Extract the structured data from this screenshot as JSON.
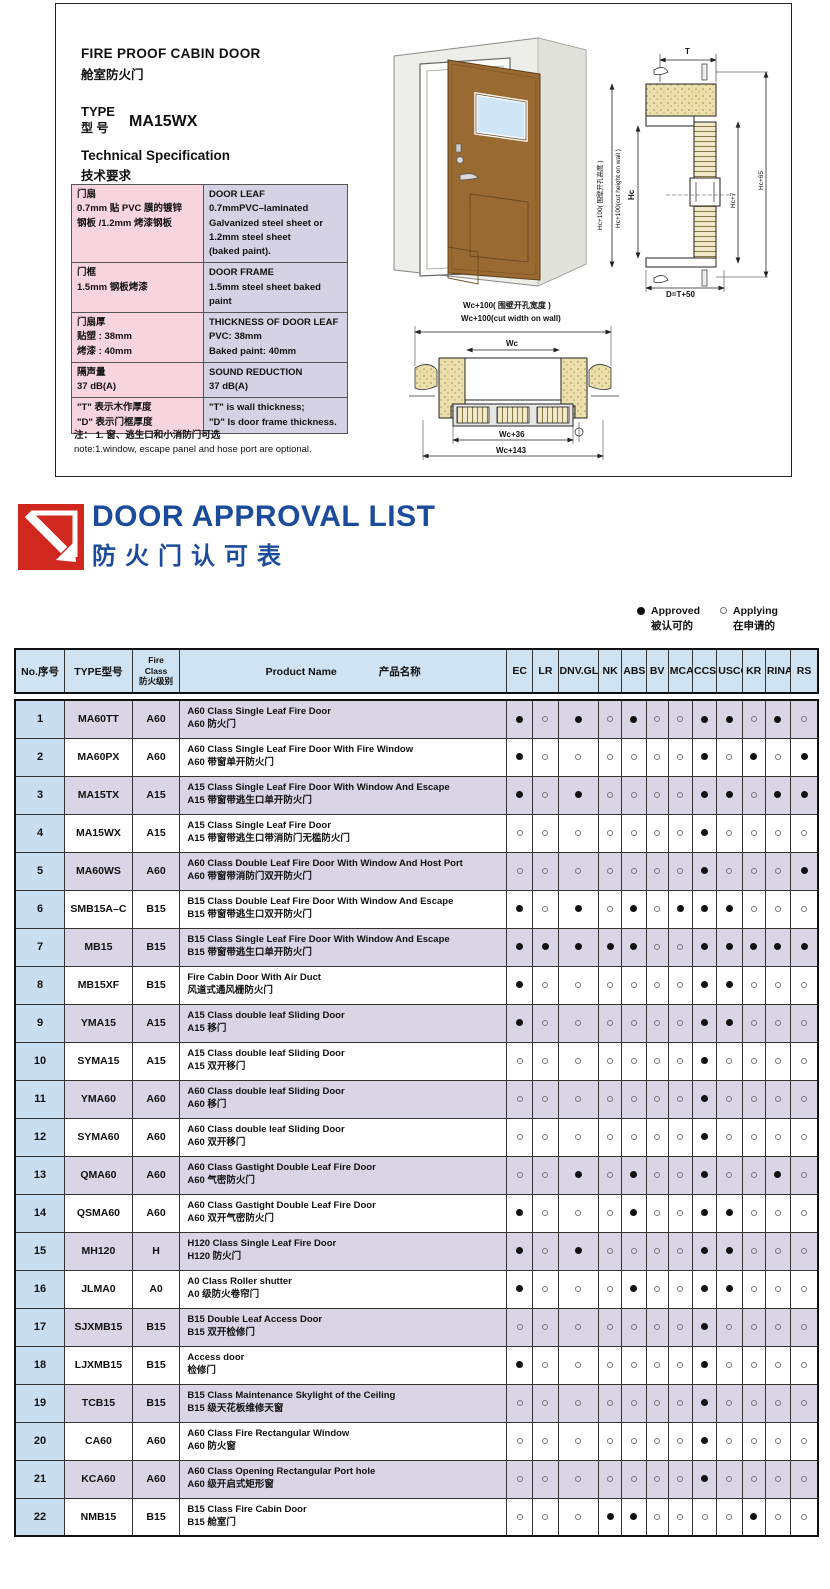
{
  "spec_sheet": {
    "title_en": "FIRE PROOF CABIN DOOR",
    "title_zh": "舱室防火门",
    "type_label_en": "TYPE",
    "type_label_zh": "型  号",
    "type_value": "MA15WX",
    "tech_spec_en": "Technical Specification",
    "tech_spec_zh": "技术要求",
    "spec_rows": [
      {
        "zh_lines": [
          "门扇",
          "0.7mm 贴 PVC 膜的镀锌",
          "钢板 /1.2mm 烤漆钢板"
        ],
        "en_lines": [
          "DOOR LEAF",
          "0.7mmPVC–laminated",
          "Galvanized steel sheet or",
          "1.2mm steel sheet",
          "(baked paint)."
        ]
      },
      {
        "zh_lines": [
          "门框",
          "1.5mm 钢板烤漆"
        ],
        "en_lines": [
          "DOOR FRAME",
          "1.5mm steel sheet baked paint"
        ]
      },
      {
        "zh_lines": [
          "门扇厚",
          "贴塑 : 38mm",
          "烤漆 : 40mm"
        ],
        "en_lines": [
          "THICKNESS OF DOOR LEAF",
          "PVC: 38mm",
          "Baked paint: 40mm"
        ]
      },
      {
        "zh_lines": [
          "隔声量",
          "37 dB(A)"
        ],
        "en_lines": [
          "SOUND REDUCTION",
          "37 dB(A)"
        ]
      },
      {
        "zh_lines": [
          "\"T\" 表示木作厚度",
          "\"D\" 表示门框厚度"
        ],
        "en_lines": [
          "\"T\" is wall thickness;",
          "\"D\" Is door frame thickness."
        ]
      }
    ],
    "note_zh": "注：  1. 窗、逃生口和小消防门可选",
    "note_en": "note:1.window, escape panel and hose port are optional.",
    "v_section": {
      "t": "T",
      "cut_zh": "Hc+100( 围壁开孔高度 )",
      "cut_en": "Hc+100(cut height on wall )",
      "hc": "Hc",
      "hc7": "Hc+7",
      "hc65": "Hc+65",
      "d": "D=T+50"
    },
    "h_section": {
      "cut_zh": "Wc+100( 围壁开孔宽度 )",
      "cut_en": "Wc+100(cut width on wall)",
      "wc": "Wc",
      "wc36": "Wc+36",
      "wc143": "Wc+143"
    }
  },
  "approval": {
    "title_en": "DOOR APPROVAL LIST",
    "title_zh": "防火门认可表",
    "legend": {
      "approved_en": "Approved",
      "approved_zh": "被认可的",
      "applying_en": "Applying",
      "applying_zh": "在申请的"
    },
    "colors": {
      "title_blue": "#1b4c9b",
      "logo_red": "#d0281f",
      "header_bg": "#cfe3f3",
      "no_col_bg": "#c9def0",
      "odd_row_bg": "#d9d5e7"
    },
    "columns": {
      "no": "No.序号",
      "type": "TYPE型号",
      "fire_class_lines": [
        "Fire",
        "Class",
        "防火级别"
      ],
      "product_en": "Product Name",
      "product_zh": "产品名称",
      "societies": [
        "EC",
        "LR",
        "DNV.GL",
        "NK",
        "ABS",
        "BV",
        "MCA",
        "CCS",
        "USCG",
        "KR",
        "RINA",
        "RS"
      ]
    },
    "rows": [
      {
        "no": "1",
        "type": "MA60TT",
        "class": "A60",
        "name_en": "A60 Class Single Leaf Fire Door",
        "name_zh": "A60 防火门",
        "status": [
          1,
          0,
          1,
          0,
          1,
          0,
          0,
          1,
          1,
          0,
          1,
          0
        ]
      },
      {
        "no": "2",
        "type": "MA60PX",
        "class": "A60",
        "name_en": "A60 Class Single Leaf Fire Door With Fire Window",
        "name_zh": "A60 带窗单开防火门",
        "status": [
          1,
          0,
          0,
          0,
          0,
          0,
          0,
          1,
          0,
          1,
          0,
          1
        ]
      },
      {
        "no": "3",
        "type": "MA15TX",
        "class": "A15",
        "name_en": "A15 Class Single Leaf Fire Door With Window And Escape",
        "name_zh": "A15 带窗带逃生口单开防火门",
        "status": [
          1,
          0,
          1,
          0,
          0,
          0,
          0,
          1,
          1,
          0,
          1,
          1
        ]
      },
      {
        "no": "4",
        "type": "MA15WX",
        "class": "A15",
        "name_en": "A15 Class Single Leaf Fire Door",
        "name_zh": "A15 带窗带逃生口带消防门无槛防火门",
        "status": [
          0,
          0,
          0,
          0,
          0,
          0,
          0,
          1,
          0,
          0,
          0,
          0
        ]
      },
      {
        "no": "5",
        "type": "MA60WS",
        "class": "A60",
        "name_en": "A60 Class Double Leaf Fire Door With Window And Host Port",
        "name_zh": "A60 带窗带消防门双开防火门",
        "status": [
          0,
          0,
          0,
          0,
          0,
          0,
          0,
          1,
          0,
          0,
          0,
          1
        ]
      },
      {
        "no": "6",
        "type": "SMB15A–C",
        "class": "B15",
        "name_en": "B15 Class Double Leaf Fire Door With Window And Escape",
        "name_zh": "B15 带窗带逃生口双开防火门",
        "status": [
          1,
          0,
          1,
          0,
          1,
          0,
          1,
          1,
          1,
          0,
          0,
          0
        ]
      },
      {
        "no": "7",
        "type": "MB15",
        "class": "B15",
        "name_en": "B15 Class Single Leaf Fire Door With Window And Escape",
        "name_zh": "B15 带窗带逃生口单开防火门",
        "status": [
          1,
          1,
          1,
          1,
          1,
          0,
          0,
          1,
          1,
          1,
          1,
          1
        ]
      },
      {
        "no": "8",
        "type": "MB15XF",
        "class": "B15",
        "name_en": "Fire Cabin Door With Air Duct",
        "name_zh": "风道式通风栅防火门",
        "status": [
          1,
          0,
          0,
          0,
          0,
          0,
          0,
          1,
          1,
          0,
          0,
          0
        ]
      },
      {
        "no": "9",
        "type": "YMA15",
        "class": "A15",
        "name_en": "A15 Class double leaf Sliding Door",
        "name_zh": "A15 移门",
        "status": [
          1,
          0,
          0,
          0,
          0,
          0,
          0,
          1,
          1,
          0,
          0,
          0
        ]
      },
      {
        "no": "10",
        "type": "SYMA15",
        "class": "A15",
        "name_en": "A15 Class double leaf Sliding Door",
        "name_zh": "A15 双开移门",
        "status": [
          0,
          0,
          0,
          0,
          0,
          0,
          0,
          1,
          0,
          0,
          0,
          0
        ]
      },
      {
        "no": "11",
        "type": "YMA60",
        "class": "A60",
        "name_en": "A60 Class double leaf Sliding Door",
        "name_zh": "A60 移门",
        "status": [
          0,
          0,
          0,
          0,
          0,
          0,
          0,
          1,
          0,
          0,
          0,
          0
        ]
      },
      {
        "no": "12",
        "type": "SYMA60",
        "class": "A60",
        "name_en": "A60 Class double leaf Sliding Door",
        "name_zh": "A60 双开移门",
        "status": [
          0,
          0,
          0,
          0,
          0,
          0,
          0,
          1,
          0,
          0,
          0,
          0
        ]
      },
      {
        "no": "13",
        "type": "QMA60",
        "class": "A60",
        "name_en": "A60 Class Gastight Double Leaf Fire Door",
        "name_zh": "A60 气密防火门",
        "status": [
          0,
          0,
          1,
          0,
          1,
          0,
          0,
          1,
          0,
          0,
          1,
          0
        ]
      },
      {
        "no": "14",
        "type": "QSMA60",
        "class": "A60",
        "name_en": "A60 Class Gastight Double Leaf Fire Door",
        "name_zh": "A60 双开气密防火门",
        "status": [
          1,
          0,
          0,
          0,
          1,
          0,
          0,
          1,
          1,
          0,
          0,
          0
        ]
      },
      {
        "no": "15",
        "type": "MH120",
        "class": "H",
        "name_en": "H120 Class Single Leaf Fire Door",
        "name_zh": "H120 防火门",
        "status": [
          1,
          0,
          1,
          0,
          0,
          0,
          0,
          1,
          1,
          0,
          0,
          0
        ]
      },
      {
        "no": "16",
        "type": "JLMA0",
        "class": "A0",
        "name_en": "A0 Class Roller shutter",
        "name_zh": "A0 级防火卷帘门",
        "status": [
          1,
          0,
          0,
          0,
          1,
          0,
          0,
          1,
          1,
          0,
          0,
          0
        ]
      },
      {
        "no": "17",
        "type": "SJXMB15",
        "class": "B15",
        "name_en": "B15  Double Leaf Access Door",
        "name_zh": "B15 双开检修门",
        "status": [
          0,
          0,
          0,
          0,
          0,
          0,
          0,
          1,
          0,
          0,
          0,
          0
        ]
      },
      {
        "no": "18",
        "type": "LJXMB15",
        "class": "B15",
        "name_en": "Access door",
        "name_zh": "检修门",
        "status": [
          1,
          0,
          0,
          0,
          0,
          0,
          0,
          1,
          0,
          0,
          0,
          0
        ]
      },
      {
        "no": "19",
        "type": "TCB15",
        "class": "B15",
        "name_en": "B15 Class Maintenance Skylight of the Ceiling",
        "name_zh": "B15 级天花板维修天窗",
        "status": [
          0,
          0,
          0,
          0,
          0,
          0,
          0,
          1,
          0,
          0,
          0,
          0
        ]
      },
      {
        "no": "20",
        "type": "CA60",
        "class": "A60",
        "name_en": "A60 Class Fire Rectangular Window",
        "name_zh": "A60 防火窗",
        "status": [
          0,
          0,
          0,
          0,
          0,
          0,
          0,
          1,
          0,
          0,
          0,
          0
        ]
      },
      {
        "no": "21",
        "type": "KCA60",
        "class": "A60",
        "name_en": "A60 Class  Opening Rectangular Port hole",
        "name_zh": "A60 级开启式矩形窗",
        "status": [
          0,
          0,
          0,
          0,
          0,
          0,
          0,
          1,
          0,
          0,
          0,
          0
        ]
      },
      {
        "no": "22",
        "type": "NMB15",
        "class": "B15",
        "name_en": "B15 Class Fire Cabin Door",
        "name_zh": "B15 舱室门",
        "status": [
          0,
          0,
          0,
          1,
          1,
          0,
          0,
          0,
          0,
          1,
          0,
          0
        ]
      }
    ]
  }
}
